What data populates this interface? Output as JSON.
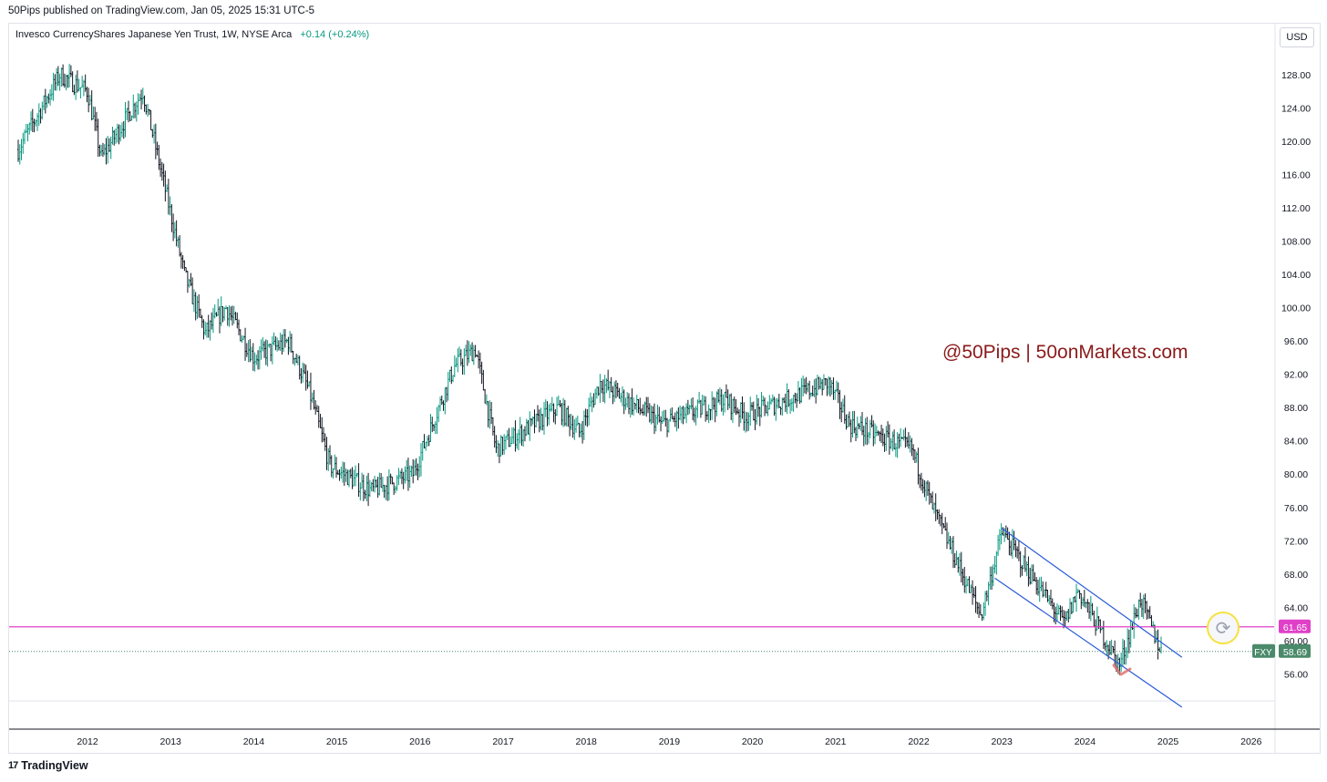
{
  "header": {
    "published_by": "50Pips published on TradingView.com, Jan 05, 2025 15:31 UTC-5"
  },
  "legend": {
    "symbol_text": "Invesco CurrencyShares Japanese Yen Trust, 1W, NYSE Arca",
    "change": "+0.14 (+0.24%)"
  },
  "currency_button": "USD",
  "watermark": "@50Pips | 50onMarkets.com",
  "footer": {
    "brand": "TradingView",
    "brand_mark": "17"
  },
  "refresh_icon": "refresh-icon",
  "colors": {
    "up": "#089981",
    "down": "#131722",
    "horizontal_line": "#e040c8",
    "channel": "#2a5bd7",
    "last_price": "#4a8a6a",
    "watermark": "#8b1a1a"
  },
  "chart_data": {
    "type": "candlestick",
    "symbol": "FXY",
    "interval": "1W",
    "ylim": [
      52,
      132
    ],
    "y_ticks": [
      "128.00",
      "124.00",
      "120.00",
      "116.00",
      "112.00",
      "108.00",
      "104.00",
      "100.00",
      "96.00",
      "92.00",
      "88.00",
      "84.00",
      "80.00",
      "76.00",
      "72.00",
      "68.00",
      "64.00",
      "60.00",
      "56.00"
    ],
    "x_ticks": [
      "2012",
      "2013",
      "2014",
      "2015",
      "2016",
      "2017",
      "2018",
      "2019",
      "2020",
      "2021",
      "2022",
      "2023",
      "2024",
      "2025",
      "2026"
    ],
    "price_path": [
      {
        "date": "2011-03",
        "price": 119
      },
      {
        "date": "2011-09",
        "price": 128
      },
      {
        "date": "2012-01",
        "price": 126
      },
      {
        "date": "2012-03",
        "price": 118
      },
      {
        "date": "2012-09",
        "price": 126
      },
      {
        "date": "2013-03",
        "price": 104
      },
      {
        "date": "2013-06",
        "price": 97
      },
      {
        "date": "2013-09",
        "price": 100
      },
      {
        "date": "2014-01",
        "price": 94
      },
      {
        "date": "2014-06",
        "price": 96
      },
      {
        "date": "2014-09",
        "price": 90
      },
      {
        "date": "2014-12",
        "price": 81
      },
      {
        "date": "2015-06",
        "price": 78
      },
      {
        "date": "2015-12",
        "price": 80
      },
      {
        "date": "2016-06",
        "price": 93
      },
      {
        "date": "2016-09",
        "price": 95
      },
      {
        "date": "2016-12",
        "price": 83
      },
      {
        "date": "2017-09",
        "price": 88
      },
      {
        "date": "2017-12",
        "price": 85
      },
      {
        "date": "2018-03",
        "price": 91
      },
      {
        "date": "2018-12",
        "price": 86
      },
      {
        "date": "2019-09",
        "price": 89
      },
      {
        "date": "2019-12",
        "price": 87
      },
      {
        "date": "2020-03",
        "price": 88
      },
      {
        "date": "2020-12",
        "price": 91
      },
      {
        "date": "2021-03",
        "price": 86
      },
      {
        "date": "2021-12",
        "price": 83
      },
      {
        "date": "2022-03",
        "price": 76
      },
      {
        "date": "2022-10",
        "price": 63
      },
      {
        "date": "2023-01",
        "price": 73
      },
      {
        "date": "2023-10",
        "price": 62
      },
      {
        "date": "2023-12",
        "price": 66
      },
      {
        "date": "2024-06",
        "price": 57
      },
      {
        "date": "2024-09",
        "price": 65
      },
      {
        "date": "2024-12",
        "price": 58.69
      }
    ],
    "horizontal_line": {
      "price": 61.65,
      "label": "61.65"
    },
    "last_price": {
      "price": 58.69,
      "label": "58.69",
      "symbol_label": "FXY"
    },
    "channel": {
      "upper": [
        {
          "date": "2023-01",
          "price": 73.5
        },
        {
          "date": "2025-03",
          "price": 58
        }
      ],
      "lower": [
        {
          "date": "2022-12",
          "price": 67.5
        },
        {
          "date": "2025-03",
          "price": 52
        }
      ]
    },
    "grid": false,
    "legend_position": "top-left"
  }
}
